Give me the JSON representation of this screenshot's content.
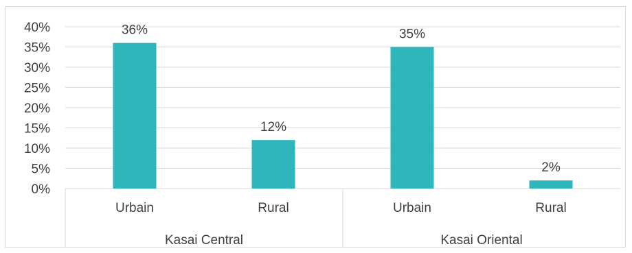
{
  "chart_data": {
    "type": "bar",
    "title": "",
    "xlabel": "",
    "ylabel": "",
    "ylim": [
      0,
      0.4
    ],
    "y_ticks": [
      0,
      0.05,
      0.1,
      0.15,
      0.2,
      0.25,
      0.3,
      0.35,
      0.4
    ],
    "y_tick_labels": [
      "0%",
      "5%",
      "10%",
      "15%",
      "20%",
      "25%",
      "30%",
      "35%",
      "40%"
    ],
    "grid": true,
    "legend": "none",
    "bar_color": "#2fb5bc",
    "groups": [
      {
        "name": "Kasai Central",
        "categories": [
          "Urbain",
          "Rural"
        ],
        "values": [
          0.36,
          0.12
        ],
        "data_labels": [
          "36%",
          "12%"
        ]
      },
      {
        "name": "Kasai Oriental",
        "categories": [
          "Urbain",
          "Rural"
        ],
        "values": [
          0.35,
          0.02
        ],
        "data_labels": [
          "35%",
          "2%"
        ]
      }
    ]
  }
}
